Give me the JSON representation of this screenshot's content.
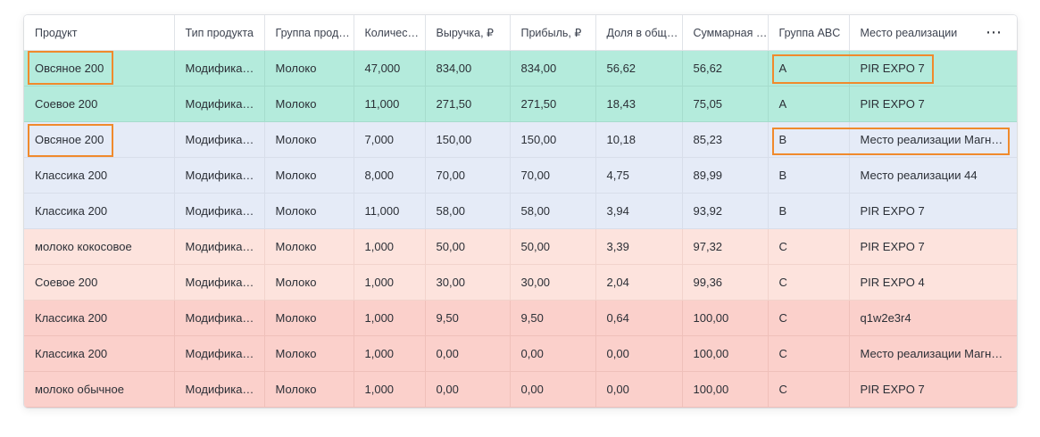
{
  "table": {
    "columns": [
      "Продукт",
      "Тип продукта",
      "Группа прод…",
      "Количес…",
      "Выручка, ₽",
      "Прибыль, ₽",
      "Доля в общ…",
      "Суммарная …",
      "Группа ABC",
      "Место реализации"
    ],
    "more_icon": "⋯",
    "rows": [
      {
        "band": "a",
        "cells": [
          "Овсяное 200",
          "Модифика…",
          "Молоко",
          "47,000",
          "834,00",
          "834,00",
          "56,62",
          "56,62",
          "A",
          "PIR EXPO 7"
        ]
      },
      {
        "band": "a",
        "cells": [
          "Соевое 200",
          "Модифика…",
          "Молоко",
          "11,000",
          "271,50",
          "271,50",
          "18,43",
          "75,05",
          "A",
          "PIR EXPO 7"
        ]
      },
      {
        "band": "b",
        "cells": [
          "Овсяное 200",
          "Модифика…",
          "Молоко",
          "7,000",
          "150,00",
          "150,00",
          "10,18",
          "85,23",
          "B",
          "Место реализации Магн…"
        ]
      },
      {
        "band": "b",
        "cells": [
          "Классика 200",
          "Модифика…",
          "Молоко",
          "8,000",
          "70,00",
          "70,00",
          "4,75",
          "89,99",
          "B",
          "Место реализации 44"
        ]
      },
      {
        "band": "b",
        "cells": [
          "Классика 200",
          "Модифика…",
          "Молоко",
          "11,000",
          "58,00",
          "58,00",
          "3,94",
          "93,92",
          "B",
          "PIR EXPO 7"
        ]
      },
      {
        "band": "c1",
        "cells": [
          "молоко кокосовое",
          "Модифика…",
          "Молоко",
          "1,000",
          "50,00",
          "50,00",
          "3,39",
          "97,32",
          "C",
          "PIR EXPO 7"
        ]
      },
      {
        "band": "c1",
        "cells": [
          "Соевое 200",
          "Модифика…",
          "Молоко",
          "1,000",
          "30,00",
          "30,00",
          "2,04",
          "99,36",
          "C",
          "PIR EXPO 4"
        ]
      },
      {
        "band": "c2",
        "cells": [
          "Классика 200",
          "Модифика…",
          "Молоко",
          "1,000",
          "9,50",
          "9,50",
          "0,64",
          "100,00",
          "C",
          "q1w2e3r4"
        ]
      },
      {
        "band": "c2",
        "cells": [
          "Классика 200",
          "Модифика…",
          "Молоко",
          "1,000",
          "0,00",
          "0,00",
          "0,00",
          "100,00",
          "C",
          "Место реализации Магн…"
        ]
      },
      {
        "band": "c2",
        "cells": [
          "молоко обычное",
          "Модифика…",
          "Молоко",
          "1,000",
          "0,00",
          "0,00",
          "0,00",
          "100,00",
          "C",
          "PIR EXPO 7"
        ]
      }
    ]
  },
  "colors": {
    "group_a": "#b4ebdc",
    "group_b": "#e5ebf7",
    "group_c_light": "#fde3dd",
    "group_c_dark": "#fbd0cb",
    "highlight": "#f08a2c"
  }
}
